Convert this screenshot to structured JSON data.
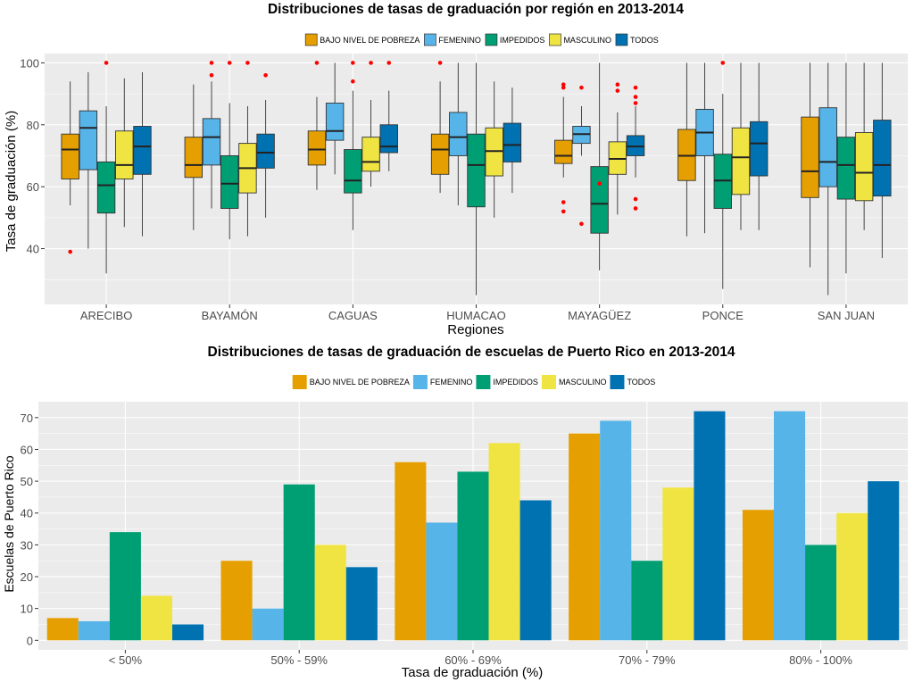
{
  "colors": {
    "bajo_nivel_de_pobreza": "#E69F00",
    "femenino": "#56B4E9",
    "impedidos": "#009E73",
    "masculino": "#F0E442",
    "todos": "#0072B2",
    "outlier": "#FF0000",
    "panel_bg": "#EBEBEB",
    "grid": "#FFFFFF"
  },
  "chart_data": [
    {
      "type": "boxplot",
      "title": "Distribuciones de tasas de graduación por región en 2013-2014",
      "xlabel": "Regiones",
      "ylabel": "Tasa de graduación (%)",
      "ylim": [
        22,
        103
      ],
      "yticks": [
        40,
        60,
        80,
        100
      ],
      "grid": true,
      "legend_position": "top",
      "legend": [
        "BAJO NIVEL DE POBREZA",
        "FEMENINO",
        "IMPEDIDOS",
        "MASCULINO",
        "TODOS"
      ],
      "categories": [
        "ARECIBO",
        "BAYAMÓN",
        "CAGUAS",
        "HUMACAO",
        "MAYAGÜEZ",
        "PONCE",
        "SAN JUAN"
      ],
      "series": [
        {
          "name": "BAJO NIVEL DE POBREZA",
          "boxes": [
            {
              "min": 54,
              "q1": 62.5,
              "median": 72,
              "q3": 77,
              "max": 94,
              "outliers": [
                39
              ]
            },
            {
              "min": 46,
              "q1": 63,
              "median": 67,
              "q3": 76,
              "max": 93,
              "outliers": []
            },
            {
              "min": 59,
              "q1": 67,
              "median": 72,
              "q3": 78,
              "max": 89,
              "outliers": [
                100
              ]
            },
            {
              "min": 58,
              "q1": 64,
              "median": 72,
              "q3": 77,
              "max": 94,
              "outliers": [
                100
              ]
            },
            {
              "min": 63,
              "q1": 67.5,
              "median": 70,
              "q3": 75,
              "max": 89,
              "outliers": [
                52,
                55,
                92,
                93
              ]
            },
            {
              "min": 44,
              "q1": 62,
              "median": 70,
              "q3": 78.5,
              "max": 100,
              "outliers": []
            },
            {
              "min": 34,
              "q1": 56.5,
              "median": 65,
              "q3": 82.5,
              "max": 100,
              "outliers": []
            }
          ]
        },
        {
          "name": "FEMENINO",
          "boxes": [
            {
              "min": 40,
              "q1": 65.5,
              "median": 79,
              "q3": 84.5,
              "max": 97,
              "outliers": []
            },
            {
              "min": 53,
              "q1": 67,
              "median": 76,
              "q3": 82,
              "max": 94,
              "outliers": [
                96,
                100
              ]
            },
            {
              "min": 64,
              "q1": 75,
              "median": 78,
              "q3": 87,
              "max": 100,
              "outliers": []
            },
            {
              "min": 54,
              "q1": 70,
              "median": 76,
              "q3": 84,
              "max": 100,
              "outliers": []
            },
            {
              "min": 70,
              "q1": 74,
              "median": 77,
              "q3": 79.5,
              "max": 86,
              "outliers": [
                48,
                92
              ]
            },
            {
              "min": 45,
              "q1": 70,
              "median": 77.5,
              "q3": 85,
              "max": 100,
              "outliers": []
            },
            {
              "min": 25,
              "q1": 60,
              "median": 68,
              "q3": 85.5,
              "max": 100,
              "outliers": []
            }
          ]
        },
        {
          "name": "IMPEDIDOS",
          "boxes": [
            {
              "min": 32,
              "q1": 51.5,
              "median": 60.5,
              "q3": 68,
              "max": 86,
              "outliers": [
                100
              ]
            },
            {
              "min": 43,
              "q1": 53,
              "median": 61,
              "q3": 70,
              "max": 87,
              "outliers": [
                100
              ]
            },
            {
              "min": 46,
              "q1": 58,
              "median": 62,
              "q3": 72,
              "max": 91,
              "outliers": [
                94,
                100
              ]
            },
            {
              "min": 25,
              "q1": 53.5,
              "median": 67,
              "q3": 77,
              "max": 100,
              "outliers": []
            },
            {
              "min": 33,
              "q1": 45,
              "median": 54.5,
              "q3": 66.5,
              "max": 100,
              "outliers": [
                61
              ]
            },
            {
              "min": 27,
              "q1": 53,
              "median": 62,
              "q3": 70.5,
              "max": 90,
              "outliers": [
                100
              ]
            },
            {
              "min": 32,
              "q1": 56,
              "median": 67,
              "q3": 76,
              "max": 100,
              "outliers": []
            }
          ]
        },
        {
          "name": "MASCULINO",
          "boxes": [
            {
              "min": 47,
              "q1": 62.5,
              "median": 67,
              "q3": 78,
              "max": 95,
              "outliers": []
            },
            {
              "min": 44,
              "q1": 58,
              "median": 66,
              "q3": 74,
              "max": 86,
              "outliers": [
                100
              ]
            },
            {
              "min": 60,
              "q1": 65,
              "median": 68,
              "q3": 76,
              "max": 88,
              "outliers": [
                100
              ]
            },
            {
              "min": 50,
              "q1": 63.5,
              "median": 71.5,
              "q3": 79,
              "max": 94,
              "outliers": []
            },
            {
              "min": 51,
              "q1": 64,
              "median": 69,
              "q3": 74.5,
              "max": 84,
              "outliers": [
                91,
                93
              ]
            },
            {
              "min": 46,
              "q1": 57.5,
              "median": 69.5,
              "q3": 79,
              "max": 100,
              "outliers": []
            },
            {
              "min": 46,
              "q1": 55.5,
              "median": 64.5,
              "q3": 77.5,
              "max": 100,
              "outliers": []
            }
          ]
        },
        {
          "name": "TODOS",
          "boxes": [
            {
              "min": 44,
              "q1": 64,
              "median": 73,
              "q3": 79.5,
              "max": 97,
              "outliers": []
            },
            {
              "min": 50,
              "q1": 66,
              "median": 71,
              "q3": 77,
              "max": 88,
              "outliers": [
                96
              ]
            },
            {
              "min": 65,
              "q1": 71,
              "median": 73,
              "q3": 80,
              "max": 91,
              "outliers": [
                100
              ]
            },
            {
              "min": 58,
              "q1": 68,
              "median": 73.5,
              "q3": 80.5,
              "max": 92,
              "outliers": []
            },
            {
              "min": 63,
              "q1": 70,
              "median": 73,
              "q3": 76.5,
              "max": 86,
              "outliers": [
                53,
                56,
                87,
                89,
                92
              ]
            },
            {
              "min": 46,
              "q1": 63.5,
              "median": 74,
              "q3": 81,
              "max": 100,
              "outliers": []
            },
            {
              "min": 37,
              "q1": 57,
              "median": 67,
              "q3": 81.5,
              "max": 100,
              "outliers": []
            }
          ]
        }
      ]
    },
    {
      "type": "bar",
      "title": "Distribuciones de tasas de graduación de escuelas de Puerto Rico en 2013-2014",
      "xlabel": "Tasa de graduación (%)",
      "ylabel": "Escuelas de Puerto Rico",
      "ylim": [
        -3,
        75
      ],
      "yticks": [
        0,
        10,
        20,
        30,
        40,
        50,
        60,
        70
      ],
      "grid": true,
      "legend_position": "top",
      "legend": [
        "BAJO NIVEL DE POBREZA",
        "FEMENINO",
        "IMPEDIDOS",
        "MASCULINO",
        "TODOS"
      ],
      "categories": [
        "< 50%",
        "50% - 59%",
        "60% - 69%",
        "70% - 79%",
        "80% - 100%"
      ],
      "series": [
        {
          "name": "BAJO NIVEL DE POBREZA",
          "values": [
            7,
            25,
            56,
            65,
            41
          ]
        },
        {
          "name": "FEMENINO",
          "values": [
            6,
            10,
            37,
            69,
            72
          ]
        },
        {
          "name": "IMPEDIDOS",
          "values": [
            34,
            49,
            53,
            25,
            30
          ]
        },
        {
          "name": "MASCULINO",
          "values": [
            14,
            30,
            62,
            48,
            40
          ]
        },
        {
          "name": "TODOS",
          "values": [
            5,
            23,
            44,
            72,
            50
          ]
        }
      ]
    }
  ]
}
